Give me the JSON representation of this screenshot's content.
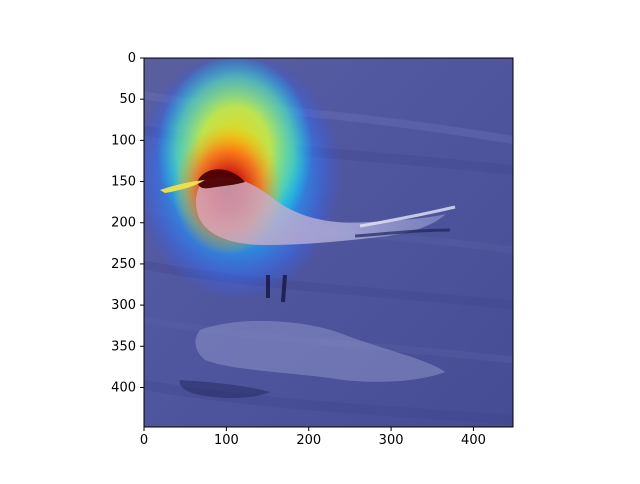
{
  "figure": {
    "type": "image-with-heatmap-overlay",
    "subject": "bird",
    "colormap": "jet",
    "base_tint": "#4b4f9c",
    "axis_color": "#000000",
    "frame_background": "#ffffff"
  },
  "chart_data": {
    "type": "heatmap",
    "title": "",
    "xlabel": "",
    "ylabel": "",
    "xlim": [
      0,
      448
    ],
    "ylim": [
      448,
      0
    ],
    "grid": false,
    "x_ticks": [
      0,
      100,
      200,
      300,
      400
    ],
    "y_ticks": [
      0,
      50,
      100,
      150,
      200,
      250,
      300,
      350,
      400
    ],
    "x_tick_labels": [
      "0",
      "100",
      "200",
      "300",
      "400"
    ],
    "y_tick_labels": [
      "0",
      "50",
      "100",
      "150",
      "200",
      "250",
      "300",
      "350",
      "400"
    ],
    "hotspot_center_data": [
      110,
      175
    ],
    "hotspot_extent_data": {
      "x": [
        20,
        230
      ],
      "y": [
        40,
        290
      ]
    }
  }
}
